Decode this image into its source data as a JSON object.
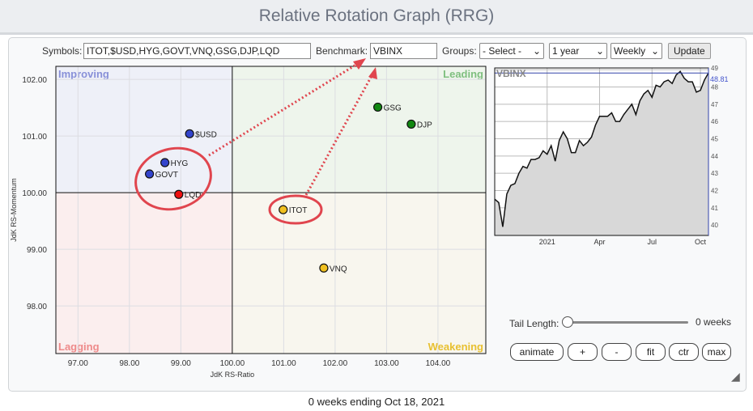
{
  "title": "Relative Rotation Graph (RRG)",
  "controls": {
    "symbols_label": "Symbols:",
    "symbols_value": "ITOT,$USD,HYG,GOVT,VNQ,GSG,DJP,LQD",
    "benchmark_label": "Benchmark:",
    "benchmark_value": "VBINX",
    "groups_label": "Groups:",
    "groups_value": "- Select -",
    "period_value": "1 year",
    "interval_value": "Weekly",
    "update_label": "Update"
  },
  "rrg": {
    "xlabel": "JdK RS-Ratio",
    "ylabel": "JdK RS-Momentum",
    "xlim": [
      96.57,
      104.93
    ],
    "ylim": [
      97.16,
      102.23
    ],
    "x_ticks": [
      "97.00",
      "98.00",
      "99.00",
      "100.00",
      "101.00",
      "102.00",
      "103.00",
      "104.00"
    ],
    "y_ticks": [
      "102.00",
      "101.00",
      "100.00",
      "99.00",
      "98.00"
    ],
    "quadrants": {
      "improving": "Improving",
      "leading": "Leading",
      "lagging": "Lagging",
      "weakening": "Weakening"
    },
    "colors": {
      "improving": "#3344cc",
      "leading": "#118811",
      "lagging": "#ee1111",
      "weakening": "#f0c020"
    },
    "points": [
      {
        "symbol": "$USD",
        "x": 99.17,
        "y": 101.04,
        "quadrant": "improving"
      },
      {
        "symbol": "HYG",
        "x": 98.69,
        "y": 100.53,
        "quadrant": "improving"
      },
      {
        "symbol": "GOVT",
        "x": 98.39,
        "y": 100.33,
        "quadrant": "improving"
      },
      {
        "symbol": "LQD",
        "x": 98.96,
        "y": 99.97,
        "quadrant": "lagging"
      },
      {
        "symbol": "ITOT",
        "x": 100.99,
        "y": 99.7,
        "quadrant": "weakening"
      },
      {
        "symbol": "VNQ",
        "x": 101.78,
        "y": 98.67,
        "quadrant": "weakening"
      },
      {
        "symbol": "GSG",
        "x": 102.83,
        "y": 101.51,
        "quadrant": "leading"
      },
      {
        "symbol": "DJP",
        "x": 103.48,
        "y": 101.21,
        "quadrant": "leading"
      }
    ]
  },
  "benchmark_chart": {
    "title": "VBINX",
    "last_value": "48.81",
    "ylim": [
      39.4,
      49.1
    ],
    "y_ticks": [
      "49",
      "48",
      "47",
      "46",
      "45",
      "44",
      "43",
      "42",
      "41",
      "40"
    ],
    "x_ticks": [
      "2021",
      "Apr",
      "Jul",
      "Oct"
    ],
    "values": [
      41.5,
      41.3,
      39.9,
      41.8,
      42.3,
      42.4,
      43.0,
      43.4,
      43.3,
      43.8,
      43.8,
      43.9,
      44.3,
      44.1,
      44.6,
      43.7,
      44.9,
      45.4,
      45.0,
      44.2,
      44.2,
      44.9,
      44.6,
      44.8,
      45.1,
      45.8,
      46.3,
      46.3,
      46.3,
      46.5,
      46.0,
      46.0,
      46.4,
      46.7,
      47.0,
      46.4,
      47.2,
      47.6,
      47.8,
      47.4,
      48.1,
      48.0,
      48.3,
      48.4,
      48.2,
      48.7,
      48.9,
      48.5,
      48.3,
      48.3,
      47.7,
      47.8,
      48.4,
      48.81
    ]
  },
  "tail": {
    "label": "Tail Length:",
    "value": "0 weeks",
    "level": 0
  },
  "buttons": {
    "animate": "animate",
    "plus": "+",
    "minus": "-",
    "fit": "fit",
    "ctr": "ctr",
    "max": "max"
  },
  "footer": "0 weeks ending Oct 18, 2021"
}
